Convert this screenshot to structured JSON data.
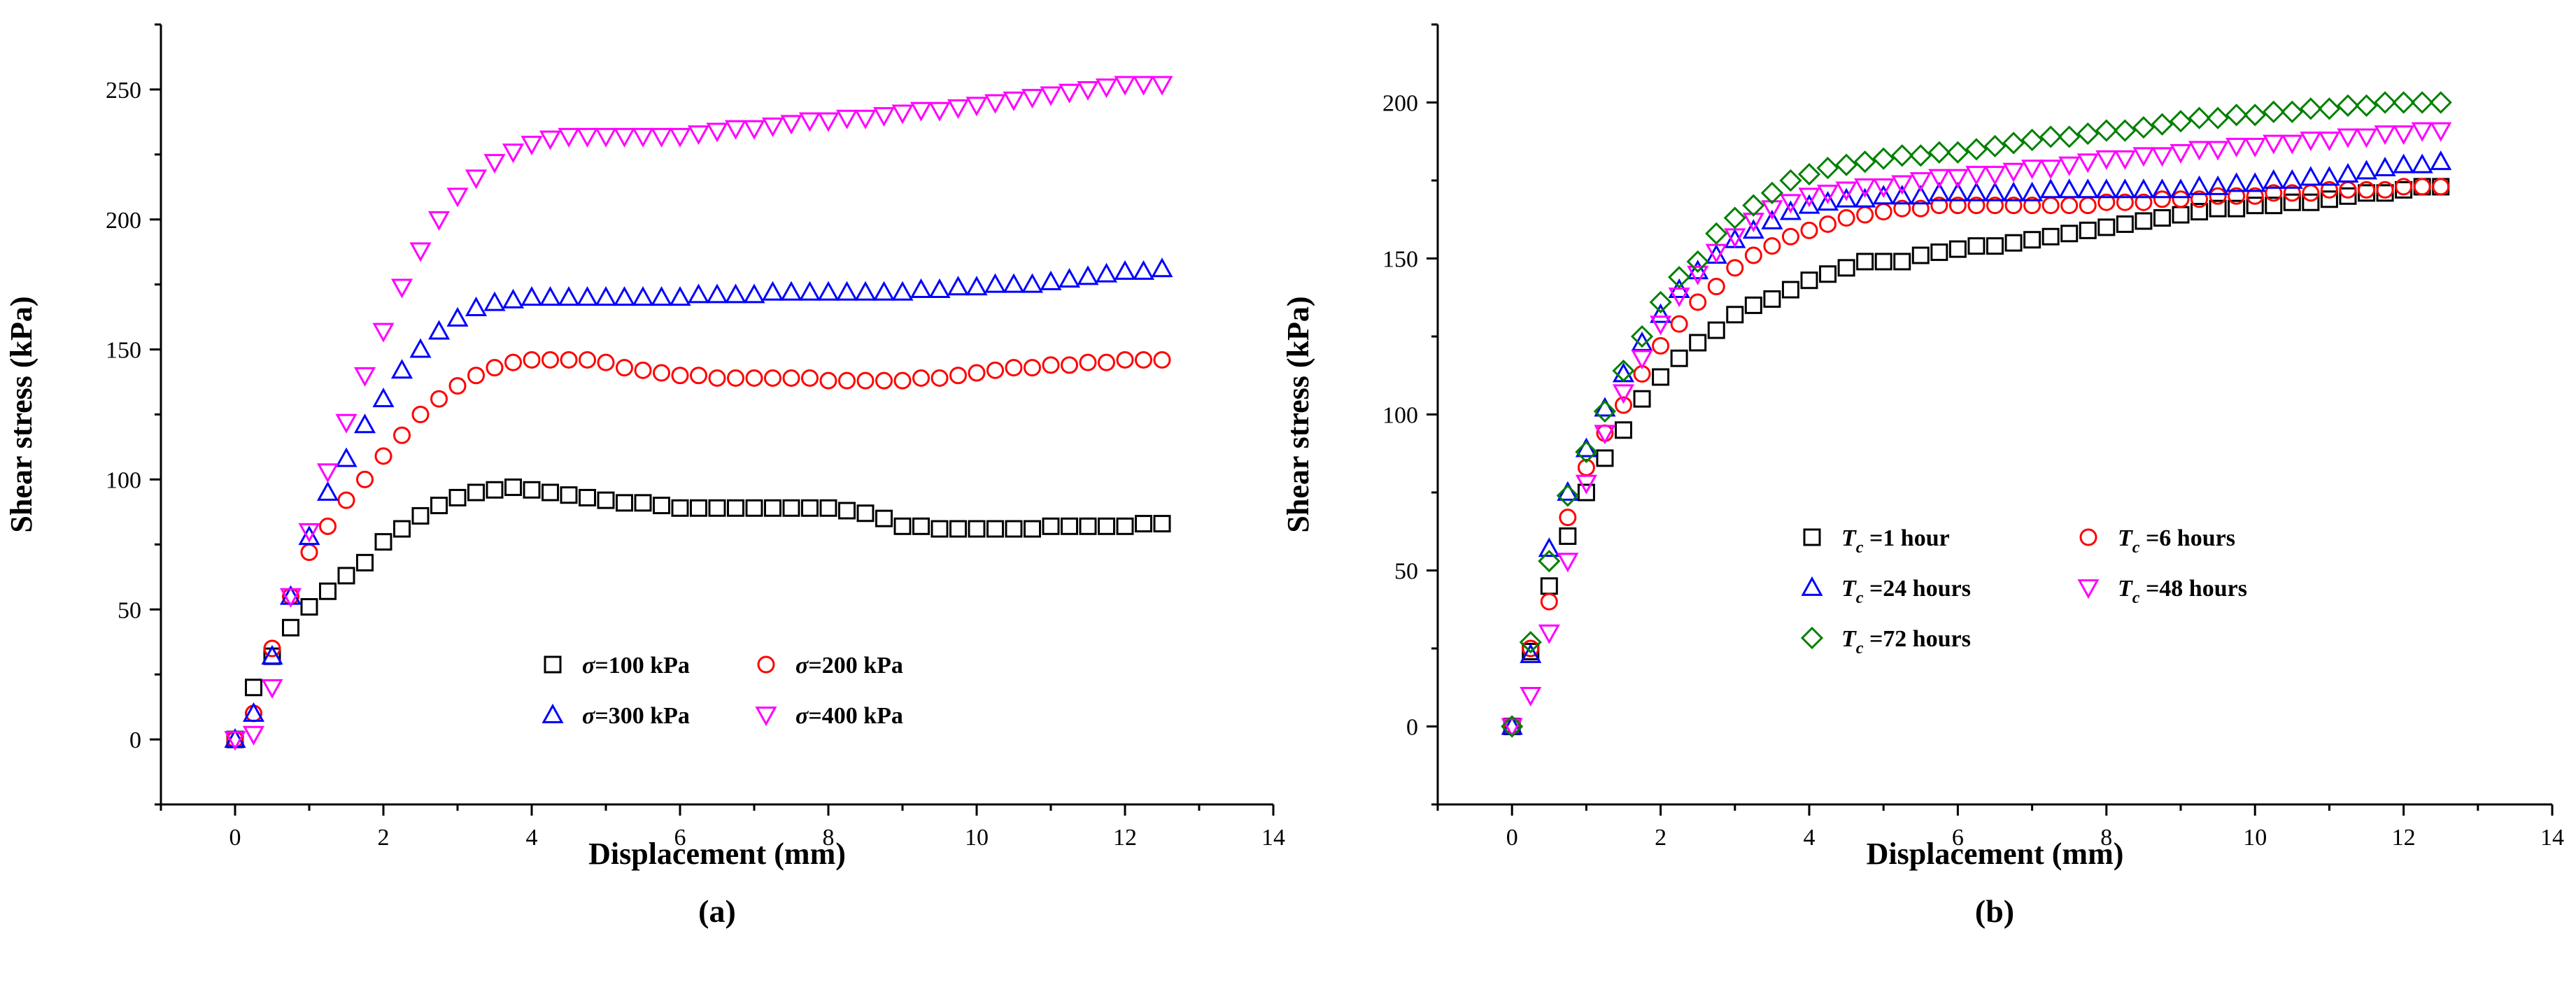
{
  "chart_data": [
    {
      "type": "scatter",
      "panel_label": "(a)",
      "xlabel": "Displacement (mm)",
      "ylabel": "Shear stress (kPa)",
      "xlim": [
        -1,
        14
      ],
      "ylim": [
        -25,
        275
      ],
      "xticks": [
        0,
        2,
        4,
        6,
        8,
        10,
        12,
        14
      ],
      "yticks": [
        0,
        50,
        100,
        150,
        200,
        250
      ],
      "legend": "lower-middle, 2 columns",
      "x": [
        0,
        0.25,
        0.5,
        0.75,
        1,
        1.25,
        1.5,
        1.75,
        2,
        2.25,
        2.5,
        2.75,
        3,
        3.25,
        3.5,
        3.75,
        4,
        4.25,
        4.5,
        4.75,
        5,
        5.25,
        5.5,
        5.75,
        6,
        6.25,
        6.5,
        6.75,
        7,
        7.25,
        7.5,
        7.75,
        8,
        8.25,
        8.5,
        8.75,
        9,
        9.25,
        9.5,
        9.75,
        10,
        10.25,
        10.5,
        10.75,
        11,
        11.25,
        11.5,
        11.75,
        12,
        12.25,
        12.5
      ],
      "series": [
        {
          "name": "100 kPa",
          "prefix": "σ",
          "suffix": "=100 kPa",
          "marker": "square",
          "color": "#000000",
          "values": [
            0,
            20,
            32,
            43,
            51,
            57,
            63,
            68,
            76,
            81,
            86,
            90,
            93,
            95,
            96,
            97,
            96,
            95,
            94,
            93,
            92,
            91,
            91,
            90,
            89,
            89,
            89,
            89,
            89,
            89,
            89,
            89,
            89,
            88,
            87,
            85,
            82,
            82,
            81,
            81,
            81,
            81,
            81,
            81,
            82,
            82,
            82,
            82,
            82,
            83,
            83
          ]
        },
        {
          "name": "200 kPa",
          "prefix": "σ",
          "suffix": "=200 kPa",
          "marker": "circle",
          "color": "#ff0000",
          "values": [
            0,
            10,
            35,
            55,
            72,
            82,
            92,
            100,
            109,
            117,
            125,
            131,
            136,
            140,
            143,
            145,
            146,
            146,
            146,
            146,
            145,
            143,
            142,
            141,
            140,
            140,
            139,
            139,
            139,
            139,
            139,
            139,
            138,
            138,
            138,
            138,
            138,
            139,
            139,
            140,
            141,
            142,
            143,
            143,
            144,
            144,
            145,
            145,
            146,
            146,
            146
          ]
        },
        {
          "name": "300 kPa",
          "prefix": "σ",
          "suffix": "=300 kPa",
          "marker": "triangle-up",
          "color": "#0000ff",
          "values": [
            0,
            10,
            32,
            55,
            78,
            95,
            108,
            121,
            131,
            142,
            150,
            157,
            162,
            166,
            168,
            169,
            170,
            170,
            170,
            170,
            170,
            170,
            170,
            170,
            170,
            171,
            171,
            171,
            171,
            172,
            172,
            172,
            172,
            172,
            172,
            172,
            172,
            173,
            173,
            174,
            174,
            175,
            175,
            175,
            176,
            177,
            178,
            179,
            180,
            180,
            181
          ]
        },
        {
          "name": "400 kPa",
          "prefix": "σ",
          "suffix": "=400 kPa",
          "marker": "triangle-down",
          "color": "#ff00ff",
          "values": [
            0,
            2,
            20,
            55,
            80,
            103,
            122,
            140,
            157,
            174,
            188,
            200,
            209,
            216,
            222,
            226,
            229,
            231,
            232,
            232,
            232,
            232,
            232,
            232,
            232,
            233,
            234,
            235,
            235,
            236,
            237,
            238,
            238,
            239,
            239,
            240,
            241,
            242,
            242,
            243,
            244,
            245,
            246,
            247,
            248,
            249,
            250,
            251,
            252,
            252,
            252
          ]
        }
      ]
    },
    {
      "type": "scatter",
      "panel_label": "(b)",
      "xlabel": "Displacement (mm)",
      "ylabel": "Shear stress (kPa)",
      "xlim": [
        -1,
        14
      ],
      "ylim": [
        -25,
        225
      ],
      "xticks": [
        0,
        2,
        4,
        6,
        8,
        10,
        12,
        14
      ],
      "yticks": [
        0,
        50,
        100,
        150,
        200
      ],
      "legend": "lower-middle, 2 columns",
      "x": [
        0,
        0.25,
        0.5,
        0.75,
        1,
        1.25,
        1.5,
        1.75,
        2,
        2.25,
        2.5,
        2.75,
        3,
        3.25,
        3.5,
        3.75,
        4,
        4.25,
        4.5,
        4.75,
        5,
        5.25,
        5.5,
        5.75,
        6,
        6.25,
        6.5,
        6.75,
        7,
        7.25,
        7.5,
        7.75,
        8,
        8.25,
        8.5,
        8.75,
        9,
        9.25,
        9.5,
        9.75,
        10,
        10.25,
        10.5,
        10.75,
        11,
        11.25,
        11.5,
        11.75,
        12,
        12.25,
        12.5
      ],
      "series": [
        {
          "name": "1 hour",
          "prefix": "T",
          "sub": "c",
          "suffix": " =1 hour",
          "marker": "square",
          "color": "#000000",
          "values": [
            0,
            24,
            45,
            61,
            75,
            86,
            95,
            105,
            112,
            118,
            123,
            127,
            132,
            135,
            137,
            140,
            143,
            145,
            147,
            149,
            149,
            149,
            151,
            152,
            153,
            154,
            154,
            155,
            156,
            157,
            158,
            159,
            160,
            161,
            162,
            163,
            164,
            165,
            166,
            166,
            167,
            167,
            168,
            168,
            169,
            170,
            171,
            171,
            172,
            173,
            173
          ]
        },
        {
          "name": "6 hours",
          "prefix": "T",
          "sub": "c",
          "suffix": " =6 hours",
          "marker": "circle",
          "color": "#ff0000",
          "values": [
            0,
            25,
            40,
            67,
            83,
            94,
            103,
            113,
            122,
            129,
            136,
            141,
            147,
            151,
            154,
            157,
            159,
            161,
            163,
            164,
            165,
            166,
            166,
            167,
            167,
            167,
            167,
            167,
            167,
            167,
            167,
            167,
            168,
            168,
            168,
            169,
            169,
            169,
            170,
            170,
            170,
            171,
            171,
            171,
            172,
            172,
            172,
            172,
            173,
            173,
            173
          ]
        },
        {
          "name": "24 hours",
          "prefix": "T",
          "sub": "c",
          "suffix": " =24 hours",
          "marker": "triangle-up",
          "color": "#0000ff",
          "values": [
            0,
            23,
            57,
            75,
            89,
            102,
            113,
            123,
            132,
            140,
            146,
            151,
            156,
            159,
            162,
            165,
            167,
            168,
            169,
            169,
            170,
            170,
            170,
            171,
            171,
            171,
            171,
            171,
            171,
            172,
            172,
            172,
            172,
            172,
            172,
            172,
            172,
            173,
            173,
            174,
            174,
            175,
            175,
            176,
            176,
            177,
            178,
            179,
            180,
            180,
            181
          ]
        },
        {
          "name": "48 hours",
          "prefix": "T",
          "sub": "c",
          "suffix": " =48 hours",
          "marker": "triangle-down",
          "color": "#ff00ff",
          "values": [
            0,
            10,
            30,
            53,
            78,
            94,
            107,
            118,
            129,
            138,
            145,
            152,
            157,
            162,
            166,
            168,
            170,
            171,
            172,
            173,
            173,
            174,
            175,
            176,
            176,
            177,
            177,
            178,
            179,
            179,
            180,
            181,
            182,
            182,
            183,
            183,
            184,
            185,
            185,
            186,
            186,
            187,
            187,
            188,
            188,
            189,
            189,
            190,
            190,
            191,
            191
          ]
        },
        {
          "name": "72 hours",
          "prefix": "T",
          "sub": "c",
          "suffix": " =72 hours",
          "marker": "diamond",
          "color": "#008000",
          "values": [
            0,
            27,
            53,
            74,
            88,
            101,
            114,
            125,
            136,
            144,
            149,
            158,
            163,
            167,
            171,
            175,
            177,
            179,
            180,
            181,
            182,
            183,
            183,
            184,
            184,
            185,
            186,
            187,
            188,
            189,
            189,
            190,
            191,
            191,
            192,
            193,
            194,
            195,
            195,
            196,
            196,
            197,
            197,
            198,
            198,
            199,
            199,
            200,
            200,
            200,
            200
          ]
        }
      ]
    }
  ]
}
